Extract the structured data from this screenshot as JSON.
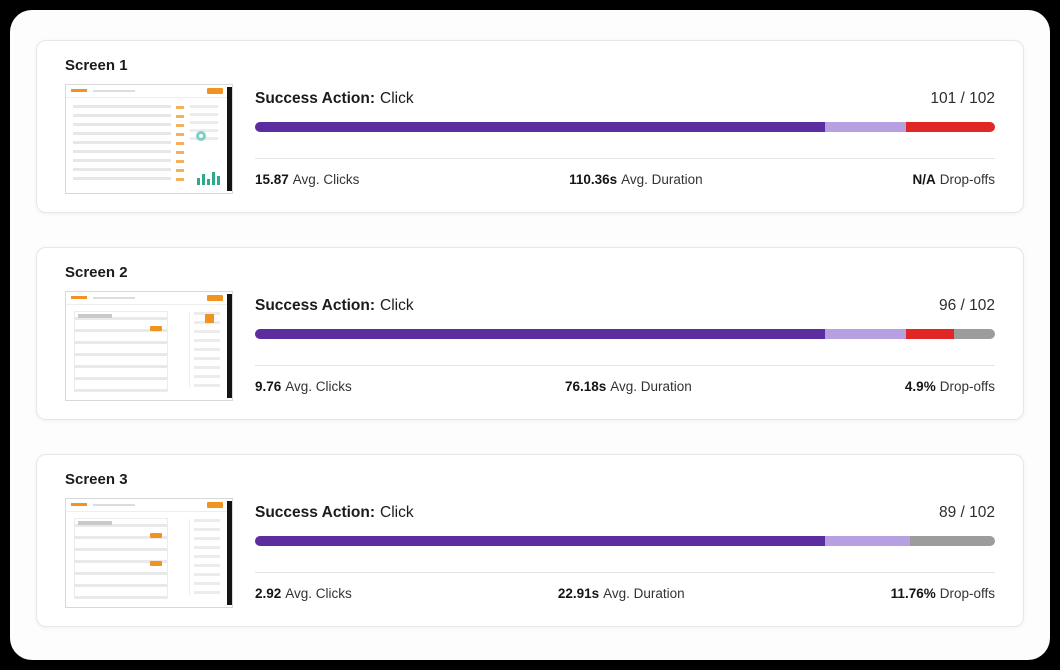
{
  "cards": [
    {
      "title": "Screen 1",
      "success_action": {
        "label": "Success Action:",
        "value": "Click"
      },
      "ratio": "101 / 102",
      "bar": {
        "segments": [
          {
            "name": "purple",
            "color": "#5c2d9e",
            "pct": 77
          },
          {
            "name": "light-purple",
            "color": "#b7a0e2",
            "pct": 11
          },
          {
            "name": "red",
            "color": "#e12626",
            "pct": 12
          }
        ]
      },
      "stats": {
        "clicks": {
          "value": "15.87",
          "label": "Avg. Clicks"
        },
        "duration": {
          "value": "110.36s",
          "label": "Avg. Duration"
        },
        "dropoffs": {
          "value": "N/A",
          "label": "Drop-offs"
        }
      }
    },
    {
      "title": "Screen 2",
      "success_action": {
        "label": "Success Action:",
        "value": "Click"
      },
      "ratio": "96 / 102",
      "bar": {
        "segments": [
          {
            "name": "purple",
            "color": "#5c2d9e",
            "pct": 77
          },
          {
            "name": "light-purple",
            "color": "#b7a0e2",
            "pct": 11
          },
          {
            "name": "red",
            "color": "#e12626",
            "pct": 6.5
          },
          {
            "name": "gray",
            "color": "#9c9c9c",
            "pct": 5.5
          }
        ]
      },
      "stats": {
        "clicks": {
          "value": "9.76",
          "label": "Avg. Clicks"
        },
        "duration": {
          "value": "76.18s",
          "label": "Avg. Duration"
        },
        "dropoffs": {
          "value": "4.9%",
          "label": "Drop-offs"
        }
      }
    },
    {
      "title": "Screen 3",
      "success_action": {
        "label": "Success Action:",
        "value": "Click"
      },
      "ratio": "89 / 102",
      "bar": {
        "segments": [
          {
            "name": "purple",
            "color": "#5c2d9e",
            "pct": 77
          },
          {
            "name": "light-purple",
            "color": "#b7a0e2",
            "pct": 11.5
          },
          {
            "name": "gray",
            "color": "#9c9c9c",
            "pct": 11.5
          }
        ]
      },
      "stats": {
        "clicks": {
          "value": "2.92",
          "label": "Avg. Clicks"
        },
        "duration": {
          "value": "22.91s",
          "label": "Avg. Duration"
        },
        "dropoffs": {
          "value": "11.76%",
          "label": "Drop-offs"
        }
      }
    }
  ]
}
